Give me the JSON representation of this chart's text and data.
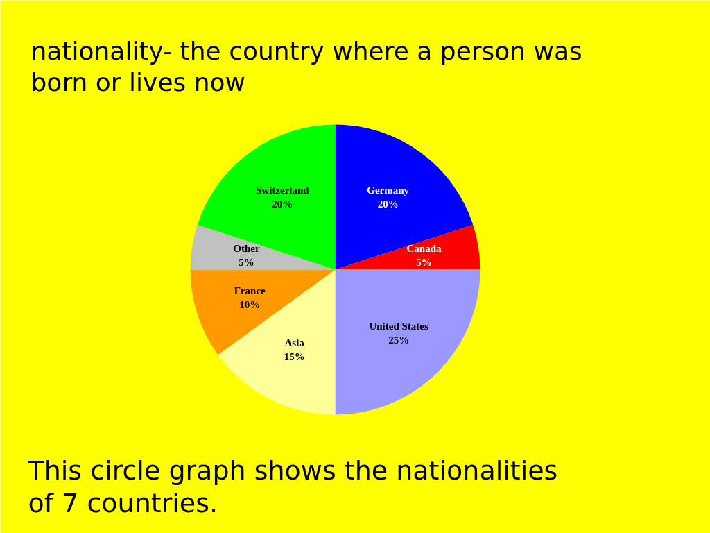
{
  "chart_data": {
    "type": "pie",
    "title": "nationality- the country where a person was born or lives now",
    "categories": [
      "Germany",
      "Canada",
      "United States",
      "Asia",
      "France",
      "Other",
      "Switzerland"
    ],
    "values": [
      20,
      5,
      25,
      15,
      10,
      5,
      20
    ],
    "colors": [
      "#0000ff",
      "#ff0000",
      "#9999ff",
      "#ffff99",
      "#ff9900",
      "#c0c0c0",
      "#00ff00"
    ],
    "value_labels": [
      "20%",
      "5%",
      "25%",
      "15%",
      "10%",
      "5%",
      "20%"
    ],
    "annotations": [
      "This circle graph shows the nationalities of 7 countries."
    ]
  }
}
